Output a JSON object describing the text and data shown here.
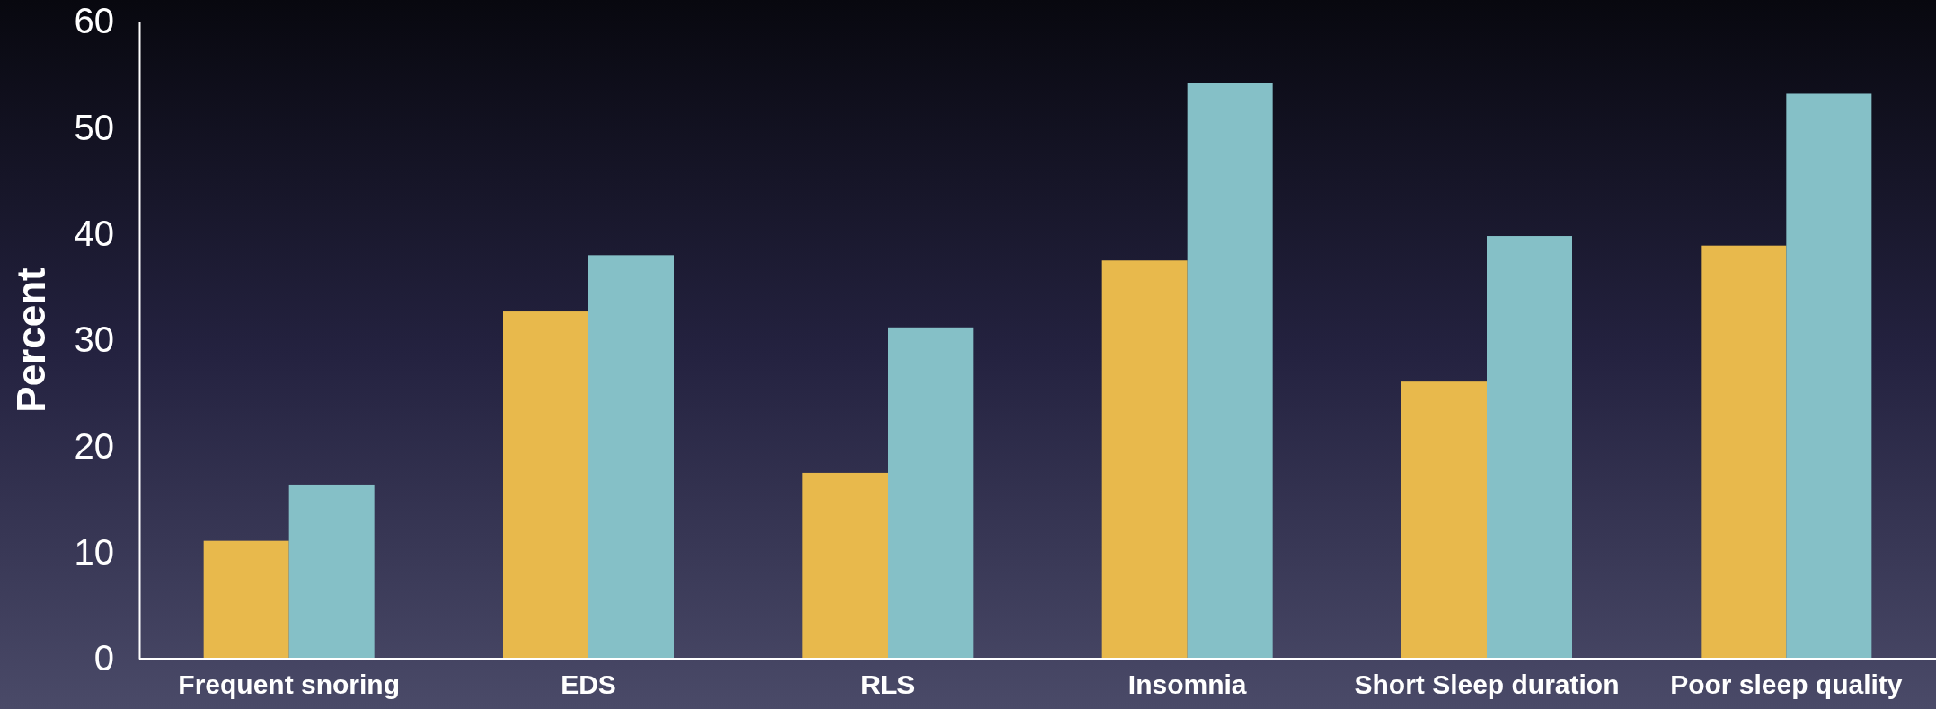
{
  "chart_data": {
    "type": "bar",
    "ylabel": "Percent",
    "categories": [
      "Frequent snoring",
      "EDS",
      "RLS",
      "Insomnia",
      "Short Sleep duration",
      "Poor sleep quality"
    ],
    "series": [
      {
        "color": "#e8b94c",
        "values": [
          11.1,
          32.7,
          17.5,
          37.5,
          26.1,
          38.9
        ]
      },
      {
        "color": "#85c0c7",
        "values": [
          16.4,
          38.0,
          31.2,
          54.2,
          39.8,
          53.2
        ]
      }
    ],
    "ylim": [
      0,
      60
    ],
    "yticks": [
      0,
      10,
      20,
      30,
      40,
      50,
      60
    ]
  }
}
